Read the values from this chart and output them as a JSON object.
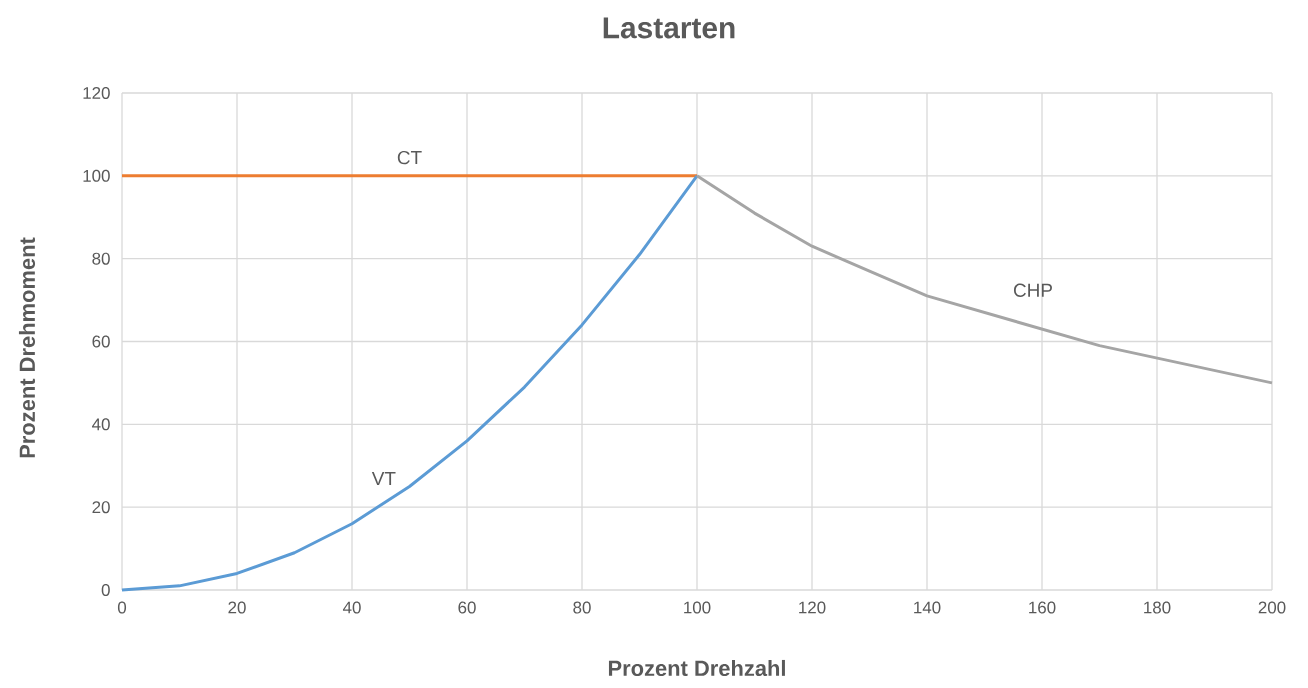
{
  "chart_data": {
    "type": "line",
    "title": "Lastarten",
    "xlabel": "Prozent Drehzahl",
    "ylabel": "Prozent Drehmoment",
    "xlim": [
      0,
      200
    ],
    "ylim": [
      0,
      120
    ],
    "xticks": [
      0,
      20,
      40,
      60,
      80,
      100,
      120,
      140,
      160,
      180,
      200
    ],
    "yticks": [
      0,
      20,
      40,
      60,
      80,
      100,
      120
    ],
    "grid": true,
    "legend": false,
    "marker": "none",
    "line_style": "solid",
    "series": [
      {
        "name": "CT",
        "color": "#ed7d31",
        "x": [
          0,
          100
        ],
        "values": [
          100,
          100
        ]
      },
      {
        "name": "VT",
        "color": "#5b9bd5",
        "x": [
          0,
          10,
          20,
          30,
          40,
          50,
          60,
          70,
          80,
          90,
          100
        ],
        "values": [
          0,
          1,
          4,
          9,
          16,
          25,
          36,
          49,
          64,
          81,
          100
        ]
      },
      {
        "name": "CHP",
        "color": "#a5a5a5",
        "x": [
          100,
          110,
          120,
          130,
          140,
          150,
          160,
          170,
          180,
          190,
          200
        ],
        "values": [
          100,
          91,
          83,
          77,
          71,
          67,
          63,
          59,
          56,
          53,
          50
        ]
      }
    ]
  }
}
